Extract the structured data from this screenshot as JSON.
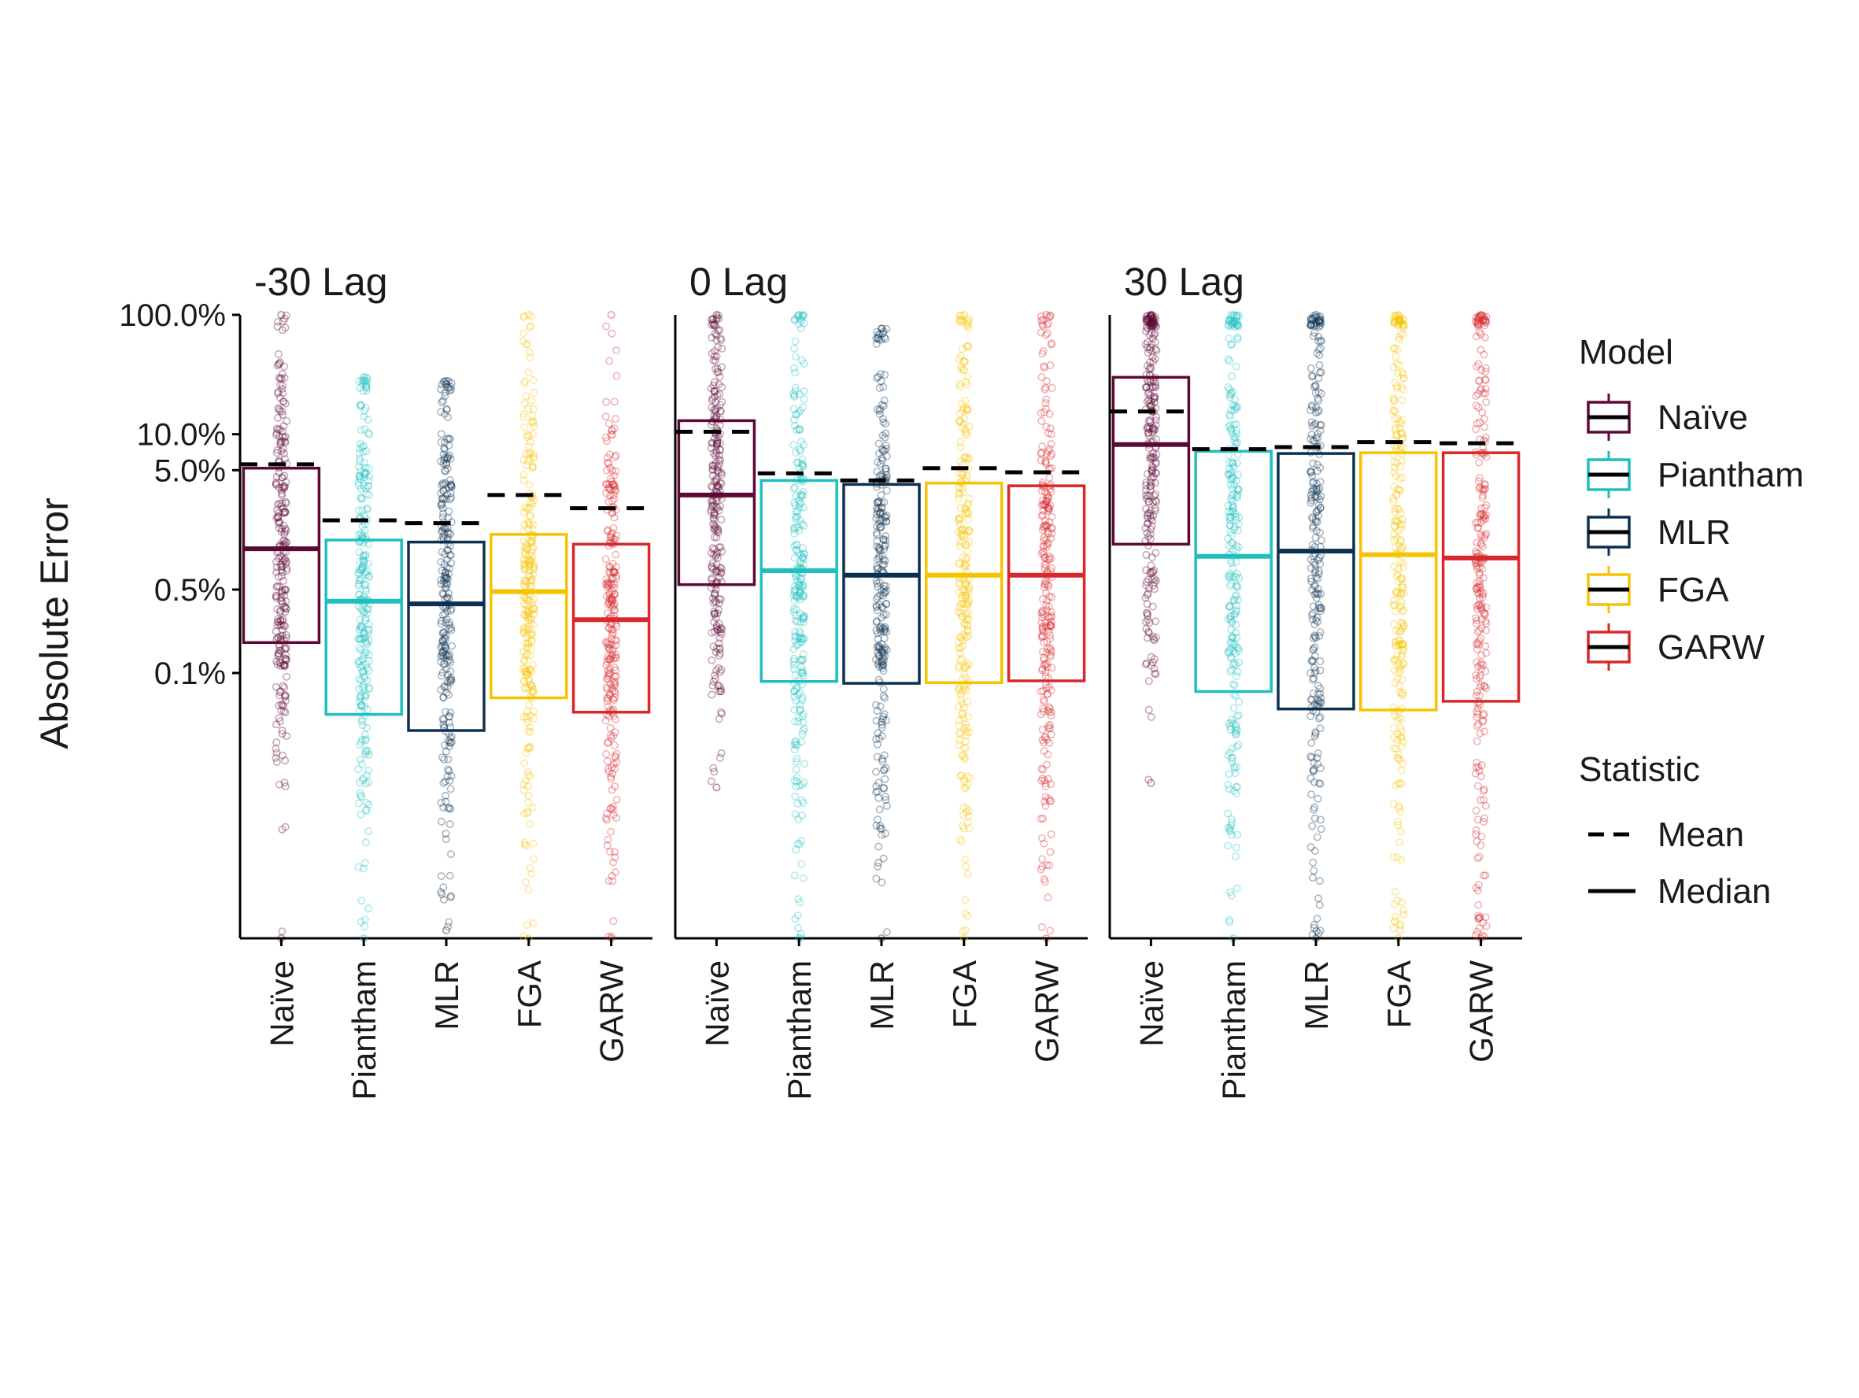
{
  "chart_data": {
    "type": "boxplot",
    "y_label": "Absolute Error",
    "y_scale": "log",
    "y_ticks": [
      {
        "value": 100,
        "label": "100.0%"
      },
      {
        "value": 10,
        "label": "10.0%"
      },
      {
        "value": 5,
        "label": "5.0%"
      },
      {
        "value": 0.5,
        "label": "0.5%"
      },
      {
        "value": 0.1,
        "label": "0.1%"
      }
    ],
    "ylim_percent": [
      0.0006,
      100
    ],
    "categories": [
      "Naïve",
      "Piantham",
      "MLR",
      "FGA",
      "GARW"
    ],
    "colors": {
      "Naïve": "#5c0a35",
      "Piantham": "#1fbfbf",
      "MLR": "#0c3150",
      "FGA": "#f5c400",
      "GARW": "#d8282b"
    },
    "panels": [
      {
        "title": "-30 Lag",
        "boxes": [
          {
            "model": "Naïve",
            "q1": 0.18,
            "median": 1.1,
            "q3": 5.2,
            "mean": 5.6,
            "min": 0.0006,
            "max": 100
          },
          {
            "model": "Piantham",
            "q1": 0.045,
            "median": 0.4,
            "q3": 1.3,
            "mean": 1.9,
            "min": 0.0006,
            "max": 30
          },
          {
            "model": "MLR",
            "q1": 0.033,
            "median": 0.38,
            "q3": 1.25,
            "mean": 1.8,
            "min": 0.0007,
            "max": 28
          },
          {
            "model": "FGA",
            "q1": 0.062,
            "median": 0.48,
            "q3": 1.45,
            "mean": 3.1,
            "min": 0.0006,
            "max": 100
          },
          {
            "model": "GARW",
            "q1": 0.047,
            "median": 0.28,
            "q3": 1.2,
            "mean": 2.4,
            "min": 0.0006,
            "max": 100
          }
        ]
      },
      {
        "title": "0 Lag",
        "boxes": [
          {
            "model": "Naïve",
            "q1": 0.55,
            "median": 3.1,
            "q3": 13.0,
            "mean": 10.5,
            "min": 0.011,
            "max": 100
          },
          {
            "model": "Piantham",
            "q1": 0.085,
            "median": 0.72,
            "q3": 4.1,
            "mean": 4.7,
            "min": 0.0006,
            "max": 100
          },
          {
            "model": "MLR",
            "q1": 0.082,
            "median": 0.66,
            "q3": 3.8,
            "mean": 4.1,
            "min": 0.0006,
            "max": 77
          },
          {
            "model": "FGA",
            "q1": 0.083,
            "median": 0.66,
            "q3": 3.9,
            "mean": 5.2,
            "min": 0.0006,
            "max": 100
          },
          {
            "model": "GARW",
            "q1": 0.086,
            "median": 0.66,
            "q3": 3.7,
            "mean": 4.8,
            "min": 0.0006,
            "max": 100
          }
        ]
      },
      {
        "title": "30 Lag",
        "boxes": [
          {
            "model": "Naïve",
            "q1": 1.2,
            "median": 8.2,
            "q3": 30.0,
            "mean": 15.5,
            "min": 0.012,
            "max": 100
          },
          {
            "model": "Piantham",
            "q1": 0.07,
            "median": 0.95,
            "q3": 7.2,
            "mean": 7.5,
            "min": 0.0006,
            "max": 100
          },
          {
            "model": "MLR",
            "q1": 0.05,
            "median": 1.05,
            "q3": 6.9,
            "mean": 7.8,
            "min": 0.0006,
            "max": 100
          },
          {
            "model": "FGA",
            "q1": 0.049,
            "median": 0.98,
            "q3": 7.0,
            "mean": 8.6,
            "min": 0.0006,
            "max": 100
          },
          {
            "model": "GARW",
            "q1": 0.058,
            "median": 0.92,
            "q3": 7.0,
            "mean": 8.4,
            "min": 0.0006,
            "max": 100
          }
        ]
      }
    ],
    "legend": {
      "position": "right",
      "model_title": "Model",
      "model_entries": [
        "Naïve",
        "Piantham",
        "MLR",
        "FGA",
        "GARW"
      ],
      "statistic_title": "Statistic",
      "statistic_entries": [
        {
          "label": "Mean",
          "style": "dashed"
        },
        {
          "label": "Median",
          "style": "solid"
        }
      ]
    },
    "grid": false
  }
}
